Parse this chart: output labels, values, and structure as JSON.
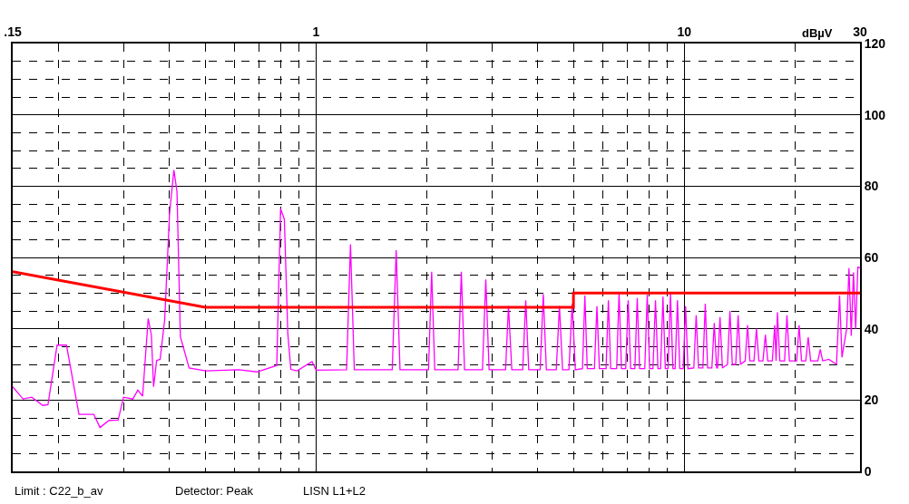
{
  "chart_data": {
    "type": "line",
    "ylabel": "dBµV",
    "log": "x",
    "grid": true,
    "marker": "none",
    "line_style": "solid",
    "xlim": [
      0.15,
      30
    ],
    "xticks": [
      {
        "value": 0.15,
        "label": ".15"
      },
      1,
      10,
      30
    ],
    "ylim": [
      0,
      120
    ],
    "yticks": [
      0,
      20,
      40,
      60,
      80,
      100,
      120
    ],
    "annotations": [
      "Limit : C22_b_av",
      "Detector: Peak",
      "LISN L1+L2"
    ],
    "series": [
      {
        "color": "#ff0000",
        "x": [
          0.15,
          0.5,
          5,
          5,
          30
        ],
        "values": [
          56,
          46,
          46,
          50,
          50
        ]
      },
      {
        "color": "#ff00ff",
        "x": [
          0.15,
          0.16,
          0.169,
          0.181,
          0.187,
          0.198,
          0.21,
          0.227,
          0.249,
          0.259,
          0.274,
          0.29,
          0.3,
          0.318,
          0.328,
          0.338,
          0.35,
          0.357,
          0.362,
          0.369,
          0.377,
          0.388,
          0.4,
          0.411,
          0.419,
          0.428,
          0.452,
          0.501,
          0.617,
          0.691,
          0.782,
          0.801,
          0.82,
          0.838,
          0.854,
          0.888,
          0.975,
          1.0,
          1.21,
          1.24,
          1.27,
          1.61,
          1.65,
          1.69,
          2.02,
          2.06,
          2.1,
          2.43,
          2.48,
          2.53,
          2.83,
          2.89,
          2.95,
          3.27,
          3.33,
          3.4,
          3.64,
          3.71,
          3.78,
          4.06,
          4.14,
          4.22,
          4.49,
          4.58,
          4.67,
          4.86,
          4.96,
          5.06,
          5.29,
          5.37,
          5.45,
          5.7,
          5.79,
          5.88,
          6.13,
          6.22,
          6.31,
          6.55,
          6.65,
          6.75,
          6.93,
          7.04,
          7.15,
          7.34,
          7.45,
          7.56,
          7.81,
          7.93,
          8.05,
          8.22,
          8.35,
          8.48,
          8.62,
          8.75,
          8.88,
          9.03,
          9.17,
          9.31,
          9.44,
          9.58,
          9.72,
          9.93,
          10.08,
          10.23,
          10.61,
          10.77,
          10.93,
          11.23,
          11.4,
          11.57,
          11.88,
          12.06,
          12.24,
          12.31,
          12.5,
          12.69,
          13.1,
          13.3,
          13.5,
          13.79,
          14,
          14.21,
          14.63,
          14.85,
          15.07,
          15.46,
          15.7,
          15.94,
          16.35,
          16.6,
          16.85,
          17.34,
          17.6,
          17.75,
          17.9,
          18.17,
          18.72,
          19,
          19.29,
          20.19,
          20.5,
          20.81,
          21.37,
          21.7,
          22.03,
          23.05,
          23.4,
          23.75,
          24.7,
          25.9,
          26.4,
          26.8,
          27.6,
          28,
          28.4,
          28.8,
          29.2,
          29.6,
          30
        ],
        "values": [
          23.7,
          20.3,
          20.8,
          18.5,
          18.7,
          35.4,
          35.4,
          16,
          16,
          12.3,
          14.3,
          14.4,
          20.8,
          20.3,
          22.8,
          21.1,
          42.9,
          38.2,
          23.7,
          31.1,
          31.4,
          42.5,
          72.4,
          84.5,
          78.5,
          37.8,
          29,
          28.2,
          28.5,
          27.9,
          29.7,
          73.7,
          70.7,
          38.6,
          28.6,
          28.2,
          30.8,
          28.4,
          28.5,
          63.7,
          28.5,
          28.5,
          62,
          28.5,
          28.5,
          56,
          28.5,
          28.5,
          56,
          28.5,
          28.5,
          53.8,
          28.5,
          28.5,
          46.4,
          28.5,
          28.5,
          48,
          28.5,
          28.5,
          49.7,
          28.5,
          28.5,
          46.4,
          28.5,
          28.5,
          47,
          28.5,
          28.8,
          49.3,
          28.8,
          28.8,
          46.3,
          28.8,
          28.8,
          48,
          28.8,
          28.8,
          50.2,
          28.8,
          28.8,
          48,
          28.8,
          28.8,
          48.6,
          28.8,
          28.8,
          49.6,
          28.8,
          28.8,
          48,
          28.8,
          28.8,
          49,
          28.8,
          28.8,
          50,
          28.8,
          28.8,
          48,
          28.8,
          28.8,
          46.3,
          28.8,
          29,
          43.8,
          29,
          29,
          47,
          29,
          29,
          41.6,
          29,
          29,
          43.3,
          29,
          30,
          45,
          30,
          30,
          43.8,
          30,
          31,
          41,
          31,
          31,
          40,
          31,
          31,
          38.3,
          31,
          31,
          41,
          31,
          44.6,
          31,
          31,
          43.8,
          31,
          31,
          41,
          31,
          31,
          37.6,
          31,
          31,
          34.2,
          31,
          31.4,
          30,
          49.3,
          32,
          40,
          57,
          38,
          55.8,
          40,
          57.4,
          57
        ]
      }
    ]
  }
}
